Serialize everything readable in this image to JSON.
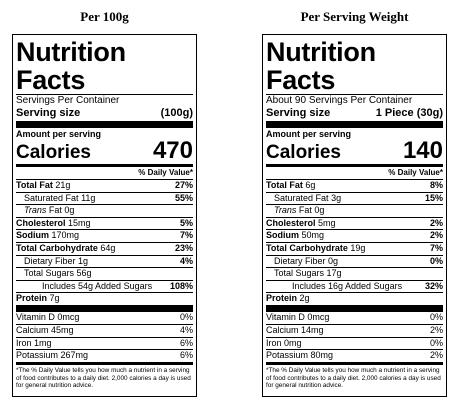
{
  "headings": {
    "left": "Per 100g",
    "right": "Per Serving Weight"
  },
  "labels": [
    {
      "title": "Nutrition Facts",
      "servings": "Servings Per Container",
      "serving_size_label": "Serving size",
      "serving_size": "(100g)",
      "amount_label": "Amount per serving",
      "calories_label": "Calories",
      "calories": "470",
      "dv_header": "% Daily Value*",
      "total_fat": {
        "label": "Total Fat",
        "amount": "21g",
        "dv": "27%"
      },
      "sat_fat": {
        "label": "Saturated Fat",
        "amount": "11g",
        "dv": "55%"
      },
      "trans_fat": {
        "label": "Trans",
        "suffix": "Fat",
        "amount": "0g"
      },
      "cholesterol": {
        "label": "Cholesterol",
        "amount": "15mg",
        "dv": "5%"
      },
      "sodium": {
        "label": "Sodium",
        "amount": "170mg",
        "dv": "7%"
      },
      "carbs": {
        "label": "Total Carbohydrate",
        "amount": "64g",
        "dv": "23%"
      },
      "fiber": {
        "label": "Dietary Fiber",
        "amount": "1g",
        "dv": "4%"
      },
      "sugars": {
        "label": "Total Sugars",
        "amount": "56g"
      },
      "added_sugars": {
        "label": "Includes 54g Added Sugars",
        "dv": "108%"
      },
      "protein": {
        "label": "Protein",
        "amount": "7g"
      },
      "vitamin_d": {
        "label": "Vitamin D 0mcg",
        "dv": "0%"
      },
      "calcium": {
        "label": "Calcium 45mg",
        "dv": "4%"
      },
      "iron": {
        "label": "Iron 1mg",
        "dv": "6%"
      },
      "potassium": {
        "label": "Potassium 267mg",
        "dv": "6%"
      },
      "footnote": "*The % Daily Value tells you how much a nutrient in a serving of food contributes to a daily diet. 2,000 calories a day is used for general nutrition advice."
    },
    {
      "title": "Nutrition Facts",
      "servings": "About 90 Servings Per Container",
      "serving_size_label": "Serving size",
      "serving_size": "1 Piece (30g)",
      "amount_label": "Amount per serving",
      "calories_label": "Calories",
      "calories": "140",
      "dv_header": "% Daily Value*",
      "total_fat": {
        "label": "Total Fat",
        "amount": "6g",
        "dv": "8%"
      },
      "sat_fat": {
        "label": "Saturated Fat",
        "amount": "3g",
        "dv": "15%"
      },
      "trans_fat": {
        "label": "Trans",
        "suffix": "Fat",
        "amount": "0g"
      },
      "cholesterol": {
        "label": "Cholesterol",
        "amount": "5mg",
        "dv": "2%"
      },
      "sodium": {
        "label": "Sodium",
        "amount": "50mg",
        "dv": "2%"
      },
      "carbs": {
        "label": "Total Carbohydrate",
        "amount": "19g",
        "dv": "7%"
      },
      "fiber": {
        "label": "Dietary Fiber",
        "amount": "0g",
        "dv": "0%"
      },
      "sugars": {
        "label": "Total Sugars",
        "amount": "17g"
      },
      "added_sugars": {
        "label": "Includes 16g Added Sugars",
        "dv": "32%"
      },
      "protein": {
        "label": "Protein",
        "amount": "2g"
      },
      "vitamin_d": {
        "label": "Vitamin D 0mcg",
        "dv": "0%"
      },
      "calcium": {
        "label": "Calcium 14mg",
        "dv": "2%"
      },
      "iron": {
        "label": "Iron 0mg",
        "dv": "0%"
      },
      "potassium": {
        "label": "Potassium 80mg",
        "dv": "2%"
      },
      "footnote": "*The % Daily Value tells you how much a nutrient in a serving of food contributes to a daily diet. 2,000 calories a day is used for general nutrition advice."
    }
  ]
}
